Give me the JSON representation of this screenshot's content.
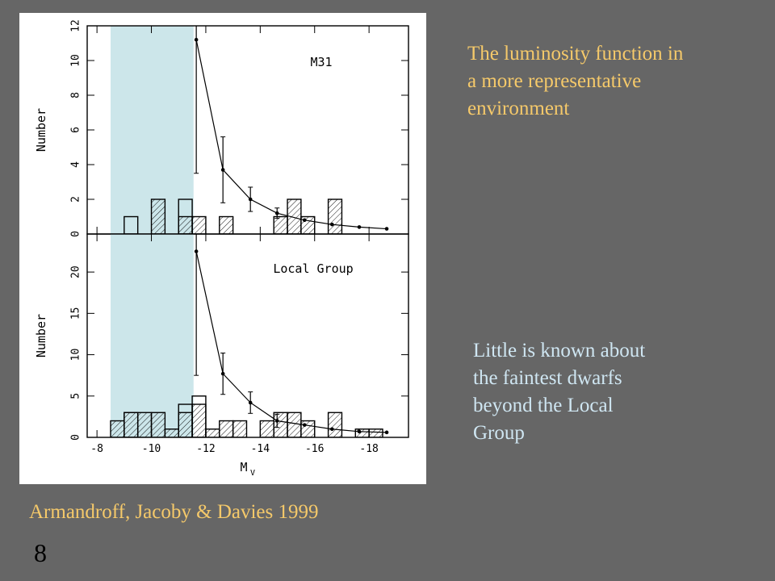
{
  "slide": {
    "title_lines": [
      "The luminosity function in",
      "a more representative",
      "environment"
    ],
    "note_lines": [
      "Little is known about",
      "the faintest dwarfs",
      "beyond the Local",
      "Group"
    ],
    "citation": "Armandroff, Jacoby & Davies 1999",
    "page_number": "8"
  },
  "chart_data": [
    {
      "type": "histogram",
      "label": "M31",
      "ylabel": "Number",
      "bins": [
        -8.5,
        -9,
        -9.5,
        -10,
        -10.5,
        -11,
        -11.5,
        -12,
        -12.5,
        -13,
        -13.5,
        -14,
        -14.5,
        -15,
        -15.5,
        -16,
        -16.5,
        -17,
        -17.5,
        -18,
        -18.5
      ],
      "series": [
        {
          "name": "hatched",
          "color": "#000000",
          "values": [
            0,
            0,
            0,
            2,
            0,
            1,
            1,
            0,
            1,
            0,
            0,
            0,
            1,
            2,
            1,
            0,
            2,
            0,
            0,
            0
          ]
        },
        {
          "name": "open",
          "color": "#000000",
          "values": [
            0,
            1,
            0,
            0,
            0,
            2,
            0,
            0,
            0,
            0,
            0,
            0,
            0,
            0,
            0,
            0,
            0,
            0,
            0,
            0
          ]
        }
      ],
      "model": {
        "x": [
          -11.65,
          -12.63,
          -13.64,
          -14.62,
          -15.63,
          -16.64,
          -17.64,
          -18.65
        ],
        "values": [
          11.2,
          3.7,
          2.0,
          1.2,
          0.8,
          0.55,
          0.4,
          0.3
        ],
        "errors": [
          7.7,
          1.9,
          0.7,
          0.3,
          null,
          null,
          null,
          null
        ]
      },
      "highlight": {
        "from": -8.5,
        "to": -11.55,
        "color": "#cce6ea"
      },
      "xlim": [
        -7.64,
        -19.45
      ],
      "ylim": [
        0,
        12
      ],
      "yticks": [
        0,
        2,
        4,
        6,
        8,
        10,
        12
      ]
    },
    {
      "type": "histogram",
      "label": "Local Group",
      "ylabel": "Number",
      "xlabel": "M",
      "xlabel_subscript": "V",
      "bins": [
        -8.5,
        -9,
        -9.5,
        -10,
        -10.5,
        -11,
        -11.5,
        -12,
        -12.5,
        -13,
        -13.5,
        -14,
        -14.5,
        -15,
        -15.5,
        -16,
        -16.5,
        -17,
        -17.5,
        -18,
        -18.5
      ],
      "series": [
        {
          "name": "hatched",
          "color": "#000000",
          "values": [
            2,
            3,
            3,
            3,
            1,
            3,
            4,
            1,
            2,
            2,
            0,
            2,
            3,
            3,
            2,
            0,
            3,
            0,
            1,
            1
          ]
        },
        {
          "name": "open",
          "color": "#000000",
          "values": [
            0,
            3,
            0,
            0,
            0,
            4,
            5,
            0,
            0,
            0,
            0,
            0,
            0,
            0,
            0,
            0,
            0,
            0,
            0,
            0
          ]
        }
      ],
      "model": {
        "x": [
          -11.65,
          -12.63,
          -13.64,
          -14.62,
          -15.63,
          -16.64,
          -17.64,
          -18.65
        ],
        "values": [
          22.5,
          7.7,
          4.2,
          2.0,
          1.5,
          1.0,
          0.7,
          0.6
        ],
        "errors": [
          15.0,
          2.5,
          1.3,
          0.8,
          null,
          null,
          null,
          null
        ]
      },
      "highlight": {
        "from": -8.5,
        "to": -11.55,
        "color": "#cce6ea"
      },
      "xlim": [
        -7.64,
        -19.45
      ],
      "ylim": [
        0,
        24.6
      ],
      "yticks": [
        0,
        5,
        10,
        15,
        20
      ],
      "xticks": [
        -8,
        -10,
        -12,
        -14,
        -16,
        -18
      ]
    }
  ]
}
